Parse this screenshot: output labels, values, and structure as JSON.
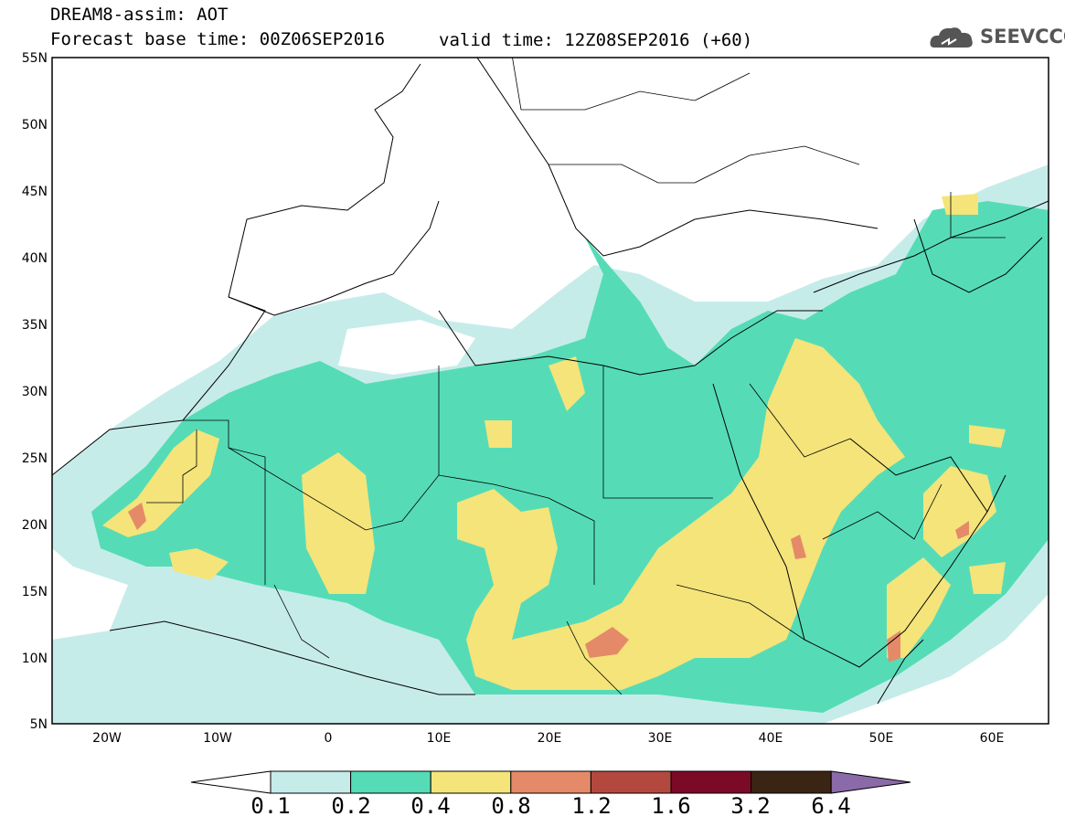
{
  "header": {
    "title": "DREAM8-assim: AOT",
    "base_time": "Forecast base time: 00Z06SEP2016",
    "valid_time": "valid time: 12Z08SEP2016 (+60)",
    "logo_text": "SEEVCCC",
    "logo_icon": "cloud-icon"
  },
  "map": {
    "lat_labels": [
      "55N",
      "50N",
      "45N",
      "40N",
      "35N",
      "30N",
      "25N",
      "20N",
      "15N",
      "10N",
      "5N"
    ],
    "lon_labels": [
      "20W",
      "10W",
      "0",
      "10E",
      "20E",
      "30E",
      "40E",
      "50E",
      "60E"
    ],
    "lon_range": [
      -25,
      65
    ],
    "lat_range": [
      5,
      55
    ]
  },
  "colorbar": {
    "labels": [
      "0.1",
      "0.2",
      "0.4",
      "0.8",
      "1.2",
      "1.6",
      "3.2",
      "6.4"
    ],
    "colors": [
      "#ffffff",
      "#c6ecea",
      "#55dcb6",
      "#f4e47a",
      "#e58a68",
      "#b3493e",
      "#7a0a26",
      "#3a2414",
      "#8a6aa8"
    ]
  }
}
